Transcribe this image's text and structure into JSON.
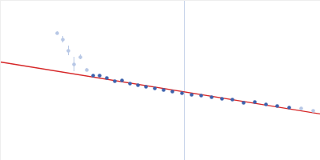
{
  "chart_data": {
    "type": "scatter",
    "x": [
      71,
      78,
      85,
      92,
      100,
      108,
      116,
      124,
      133,
      143,
      152,
      162,
      172,
      182,
      193,
      204,
      215,
      227,
      239,
      251,
      264,
      277,
      290,
      304,
      318,
      332,
      346,
      361,
      376,
      391
    ],
    "values": [
      159,
      151,
      137,
      120,
      129,
      113,
      106,
      106,
      103,
      99,
      100,
      96,
      94,
      92,
      90,
      88,
      86,
      84,
      82,
      81,
      79,
      77,
      76,
      72,
      73,
      70,
      68,
      66,
      65,
      62
    ],
    "errors": [
      2,
      4,
      6,
      9,
      3,
      2,
      0,
      0,
      0,
      0,
      0,
      0,
      0,
      0,
      0,
      0,
      0,
      0,
      0,
      0,
      0,
      0,
      0,
      0,
      0,
      0,
      0,
      0,
      0,
      0
    ],
    "colors": [
      "#b8c8e6",
      "#b8c8e6",
      "#b8c8e6",
      "#b8c8e6",
      "#b8c8e6",
      "#b8c8e6",
      "#3d62ad",
      "#3d62ad",
      "#3d62ad",
      "#3d62ad",
      "#3d62ad",
      "#3d62ad",
      "#3d62ad",
      "#3d62ad",
      "#3d62ad",
      "#3d62ad",
      "#3d62ad",
      "#3d62ad",
      "#3d62ad",
      "#3d62ad",
      "#3d62ad",
      "#3d62ad",
      "#3d62ad",
      "#3d62ad",
      "#3d62ad",
      "#3d62ad",
      "#3d62ad",
      "#3d62ad",
      "#b8c8e6",
      "#b8c8e6"
    ],
    "fit": {
      "x": [
        0,
        400
      ],
      "values": [
        123,
        58
      ],
      "color": "#d62728"
    },
    "vline": {
      "x": 230,
      "color": "#c8d4ea"
    },
    "xlim": [
      0,
      400
    ],
    "ylim": [
      0,
      200
    ],
    "xticks": [],
    "yticks": [],
    "tick_labels": false,
    "grid": false
  }
}
